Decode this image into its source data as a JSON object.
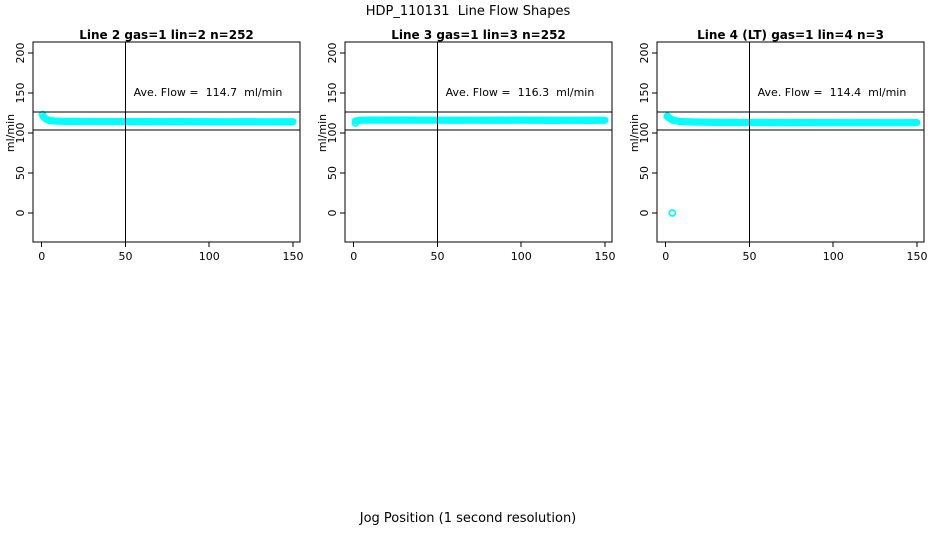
{
  "header": {
    "title": "HDP_110131  Line Flow Shapes"
  },
  "footer": {
    "xlabel": "Jog Position (1 second resolution)"
  },
  "chart_data": {
    "type": "scatter",
    "title": "HDP_110131  Line Flow Shapes",
    "xlabel": "Jog Position (1 second resolution)",
    "ylabel": "ml/min",
    "x_ticks": [
      0,
      50,
      100,
      150
    ],
    "y_ticks": [
      0,
      50,
      100,
      150,
      200
    ],
    "xlim": [
      -5.2,
      154.2
    ],
    "ylim": [
      -36.3,
      213.8
    ],
    "grid": false,
    "legend": "none",
    "point_color": "#00ffff",
    "line_color": "#000000",
    "vline_x": 50,
    "hlines": [
      126.5,
      103.5
    ],
    "panels": [
      {
        "title": "Line 2 gas=1 lin=2 n=252",
        "annotation": "Ave. Flow =  114.7  ml/min",
        "ave_flow": 114.7,
        "n": 252,
        "band": {
          "halfwidth": 4.5,
          "x": [
            1,
            2,
            3,
            4,
            6,
            8,
            12,
            16,
            22,
            30,
            40,
            50,
            60,
            70,
            80,
            90,
            100,
            110,
            120,
            130,
            140,
            150
          ],
          "y": [
            120.5,
            118.5,
            117,
            116,
            115.3,
            114.9,
            114.6,
            114.5,
            114.4,
            114.3,
            114.3,
            114.2,
            114.2,
            114.1,
            114.2,
            114.1,
            114.1,
            114.0,
            114.1,
            114.0,
            114.0,
            114.1
          ]
        },
        "markers": [
          [
            0.5,
            123
          ]
        ]
      },
      {
        "title": "Line 3 gas=1 lin=3 n=252",
        "annotation": "Ave. Flow =  116.3  ml/min",
        "ave_flow": 116.3,
        "n": 252,
        "band": {
          "halfwidth": 4.5,
          "x": [
            1,
            3,
            6,
            10,
            20,
            30,
            40,
            50,
            60,
            70,
            80,
            90,
            100,
            110,
            120,
            130,
            140,
            150
          ],
          "y": [
            115.0,
            115.8,
            116.0,
            116.1,
            116.0,
            116.1,
            116.0,
            116.0,
            115.9,
            116.0,
            115.9,
            115.9,
            116.0,
            115.9,
            115.8,
            115.9,
            115.8,
            115.9
          ]
        },
        "markers": [
          [
            1,
            112.5
          ]
        ]
      },
      {
        "title": "Line 4 (LT) gas=1 lin=4 n=3",
        "annotation": "Ave. Flow =  114.4  ml/min",
        "ave_flow": 114.4,
        "n": 3,
        "band": {
          "halfwidth": 4.5,
          "x": [
            1,
            2,
            3,
            4,
            6,
            8,
            12,
            16,
            22,
            30,
            40,
            50,
            60,
            70,
            80,
            90,
            100,
            110,
            120,
            130,
            140,
            150
          ],
          "y": [
            121,
            119,
            117.5,
            116.3,
            115.2,
            114.6,
            114.1,
            113.8,
            113.5,
            113.3,
            113.2,
            113.1,
            113.1,
            113.0,
            113.1,
            113.0,
            113.0,
            112.9,
            113.0,
            112.9,
            112.9,
            113.0
          ]
        },
        "markers": [
          [
            1,
            121
          ],
          [
            4,
            0
          ]
        ]
      }
    ]
  }
}
